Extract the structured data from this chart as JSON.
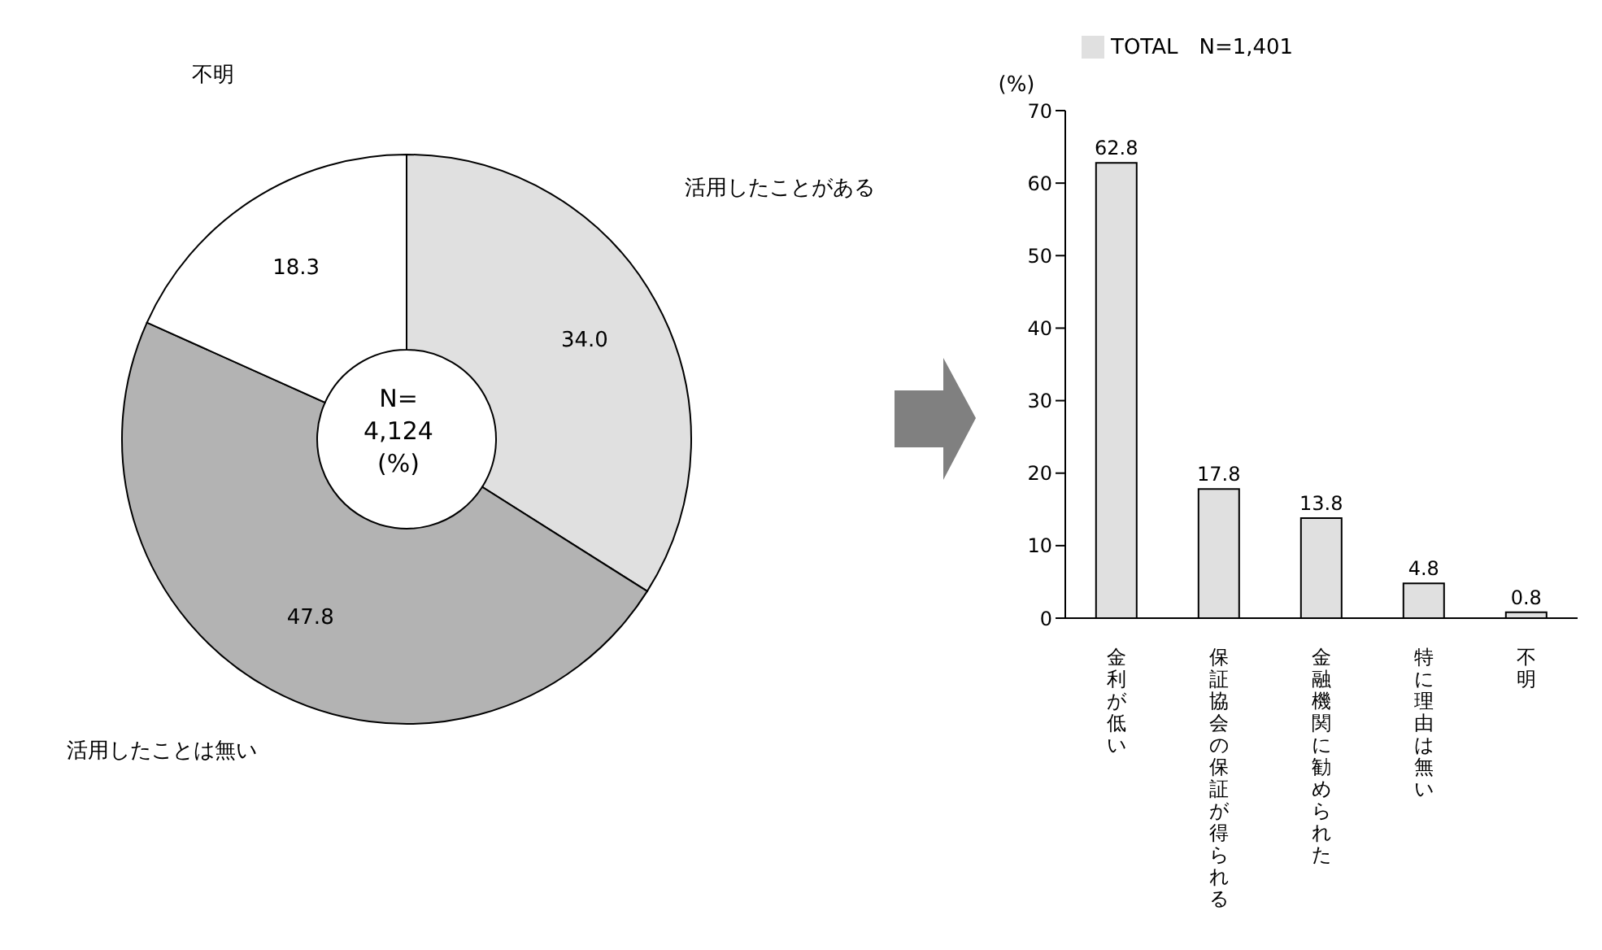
{
  "chart_data": [
    {
      "type": "donut",
      "categories": [
        "活用したことがある",
        "活用したことは無い",
        "不明"
      ],
      "values": [
        34.0,
        47.8,
        18.3
      ],
      "colors": [
        "#e0e0e0",
        "#b3b3b3",
        "#ffffff"
      ],
      "value_labels": [
        "34.0",
        "47.8",
        "18.3"
      ],
      "annotations": [
        "N=",
        "4,124",
        "(%)"
      ]
    },
    {
      "type": "bar",
      "categories": [
        "金利が低い",
        "保証協会の保証が得られる",
        "金融機関に勧められた",
        "特に理由は無い",
        "不明"
      ],
      "series": [
        {
          "name": "TOTAL　N=1,401",
          "color": "#e0e0e0",
          "values": [
            62.8,
            17.8,
            13.8,
            4.8,
            0.8
          ]
        }
      ],
      "ylabel": "(%)",
      "ylim": [
        0,
        70
      ],
      "yticks": [
        0,
        10,
        20,
        30,
        40,
        50,
        60,
        70
      ],
      "data_labels": true,
      "legend": "top",
      "grid": false
    }
  ]
}
